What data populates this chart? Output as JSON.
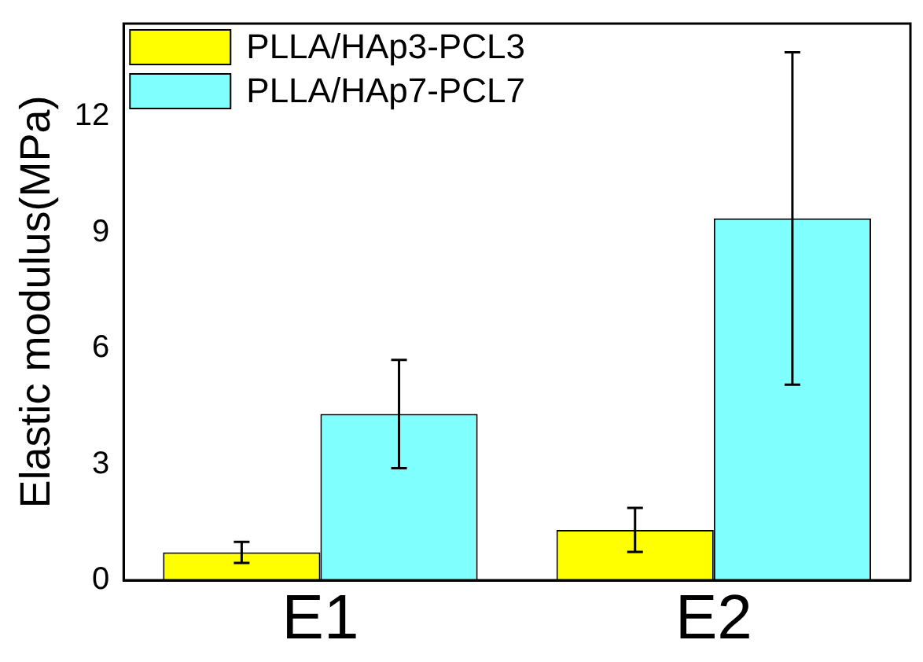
{
  "chart_data": {
    "type": "bar",
    "ylabel": "Elastic modulus(MPa)",
    "categories": [
      "E1",
      "E2"
    ],
    "series": [
      {
        "name": "PLLA/HAp3-PCL3",
        "color": "#ffff00",
        "values": [
          0.72,
          1.3
        ],
        "errors": [
          0.27,
          0.57
        ]
      },
      {
        "name": "PLLA/HAp7-PCL7",
        "color": "#80ffff",
        "values": [
          4.3,
          9.36
        ],
        "errors": [
          1.4,
          4.3
        ]
      }
    ],
    "ylim": [
      0,
      14.4
    ],
    "yticks": [
      0,
      3,
      6,
      9,
      12
    ],
    "grid": false,
    "legend": "top left"
  }
}
